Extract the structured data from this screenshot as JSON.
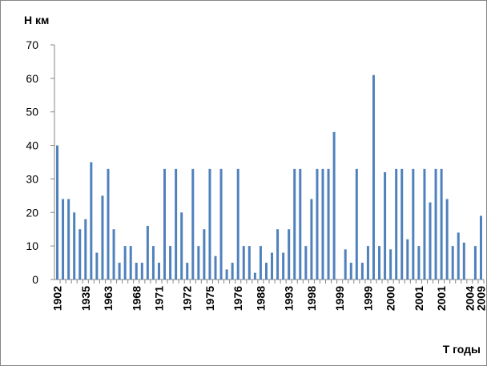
{
  "chart_data": {
    "type": "bar",
    "title": "Н км",
    "x_label": "Т годы",
    "categories": [
      "1902",
      null,
      null,
      null,
      null,
      "1935",
      null,
      null,
      null,
      "1963",
      null,
      null,
      null,
      null,
      "1968",
      null,
      null,
      null,
      "1971",
      null,
      null,
      null,
      null,
      "1972",
      null,
      null,
      null,
      "1975",
      null,
      null,
      null,
      null,
      "1976",
      null,
      null,
      null,
      "1988",
      null,
      null,
      null,
      null,
      "1993",
      null,
      null,
      null,
      "1998",
      null,
      null,
      null,
      null,
      "1999",
      null,
      null,
      null,
      null,
      "1999",
      null,
      null,
      null,
      "2000",
      null,
      null,
      null,
      null,
      "2001",
      null,
      null,
      null,
      "2001",
      null,
      null,
      null,
      null,
      "2004",
      null,
      "2009"
    ],
    "values": [
      40,
      24,
      24,
      20,
      15,
      18,
      35,
      8,
      25,
      33,
      15,
      5,
      10,
      10,
      5,
      5,
      16,
      10,
      5,
      33,
      10,
      33,
      20,
      5,
      33,
      10,
      15,
      33,
      7,
      33,
      3,
      5,
      33,
      10,
      10,
      2,
      10,
      5,
      8,
      15,
      8,
      15,
      33,
      33,
      10,
      24,
      33,
      33,
      33,
      44,
      0,
      9,
      5,
      33,
      5,
      10,
      61,
      10,
      32,
      9,
      33,
      33,
      12,
      33,
      10,
      33,
      23,
      33,
      33,
      24,
      10,
      14,
      11,
      0,
      10,
      19
    ],
    "color": "#4f81bd",
    "ylim": [
      0,
      70
    ],
    "yticks": [
      0,
      10,
      20,
      30,
      40,
      50,
      60,
      70
    ],
    "grid": false
  }
}
